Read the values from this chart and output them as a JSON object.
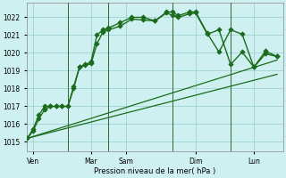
{
  "title": "",
  "xlabel": "Pression niveau de la mer( hPa )",
  "ylim": [
    1014.5,
    1022.8
  ],
  "yticks": [
    1015,
    1016,
    1017,
    1018,
    1019,
    1020,
    1021,
    1022
  ],
  "bg_color": "#cff0f0",
  "grid_color": "#99cccc",
  "line_color": "#1a6b1a",
  "marker_color": "#1a6b1a",
  "xlim": [
    0,
    22
  ],
  "xtick_labels": [
    "Ven",
    "Mar",
    "Sam",
    "Dim",
    "Lun"
  ],
  "xtick_positions": [
    0.5,
    5.5,
    8.5,
    14.5,
    19.5
  ],
  "vline_positions": [
    3.5,
    7.0,
    12.5,
    17.5
  ],
  "vline_color": "#336633",
  "vline_linewidth": 0.7,
  "series": [
    {
      "x": [
        0,
        0.5,
        1.0,
        1.5,
        2.0,
        2.5,
        3.0,
        3.5,
        4.0,
        4.5,
        5.0,
        5.5,
        6.0,
        6.5,
        7.0,
        8.0,
        9.0,
        10.0,
        11.0,
        12.0,
        12.5,
        13.0,
        14.0,
        14.5,
        15.5,
        16.5,
        17.5,
        18.5,
        19.5,
        20.5,
        21.5
      ],
      "y": [
        1015.2,
        1015.6,
        1016.3,
        1016.8,
        1017.0,
        1017.0,
        1017.0,
        1017.0,
        1018.1,
        1019.2,
        1019.3,
        1019.4,
        1020.5,
        1021.15,
        1021.3,
        1021.5,
        1021.9,
        1021.85,
        1021.8,
        1022.25,
        1022.1,
        1022.0,
        1022.2,
        1022.25,
        1021.05,
        1021.3,
        1019.35,
        1020.05,
        1019.2,
        1020.1,
        1019.8
      ],
      "marker": "D",
      "marker_size": 2.8,
      "linewidth": 1.0
    },
    {
      "x": [
        0,
        0.5,
        1.0,
        1.5,
        2.0,
        2.5,
        3.0,
        3.5,
        4.0,
        4.5,
        5.0,
        5.5,
        6.0,
        6.5,
        7.0,
        8.0,
        9.0,
        10.0,
        11.0,
        12.0,
        12.5,
        13.0,
        14.0,
        14.5,
        15.5,
        16.5,
        17.5,
        18.5,
        19.5,
        20.5,
        21.5
      ],
      "y": [
        1015.2,
        1015.7,
        1016.5,
        1017.0,
        1017.0,
        1017.0,
        1017.0,
        1017.0,
        1018.0,
        1019.2,
        1019.35,
        1019.5,
        1021.0,
        1021.3,
        1021.4,
        1021.7,
        1022.0,
        1022.0,
        1021.8,
        1022.3,
        1022.3,
        1022.1,
        1022.3,
        1022.3,
        1021.1,
        1020.05,
        1021.3,
        1021.05,
        1019.2,
        1019.95,
        1019.8
      ],
      "marker": "D",
      "marker_size": 2.8,
      "linewidth": 1.0
    },
    {
      "x": [
        0,
        21.5
      ],
      "y": [
        1015.2,
        1018.8
      ],
      "marker": null,
      "marker_size": 0,
      "linewidth": 0.9
    },
    {
      "x": [
        0,
        21.5
      ],
      "y": [
        1015.2,
        1019.6
      ],
      "marker": null,
      "marker_size": 0,
      "linewidth": 0.9
    }
  ]
}
